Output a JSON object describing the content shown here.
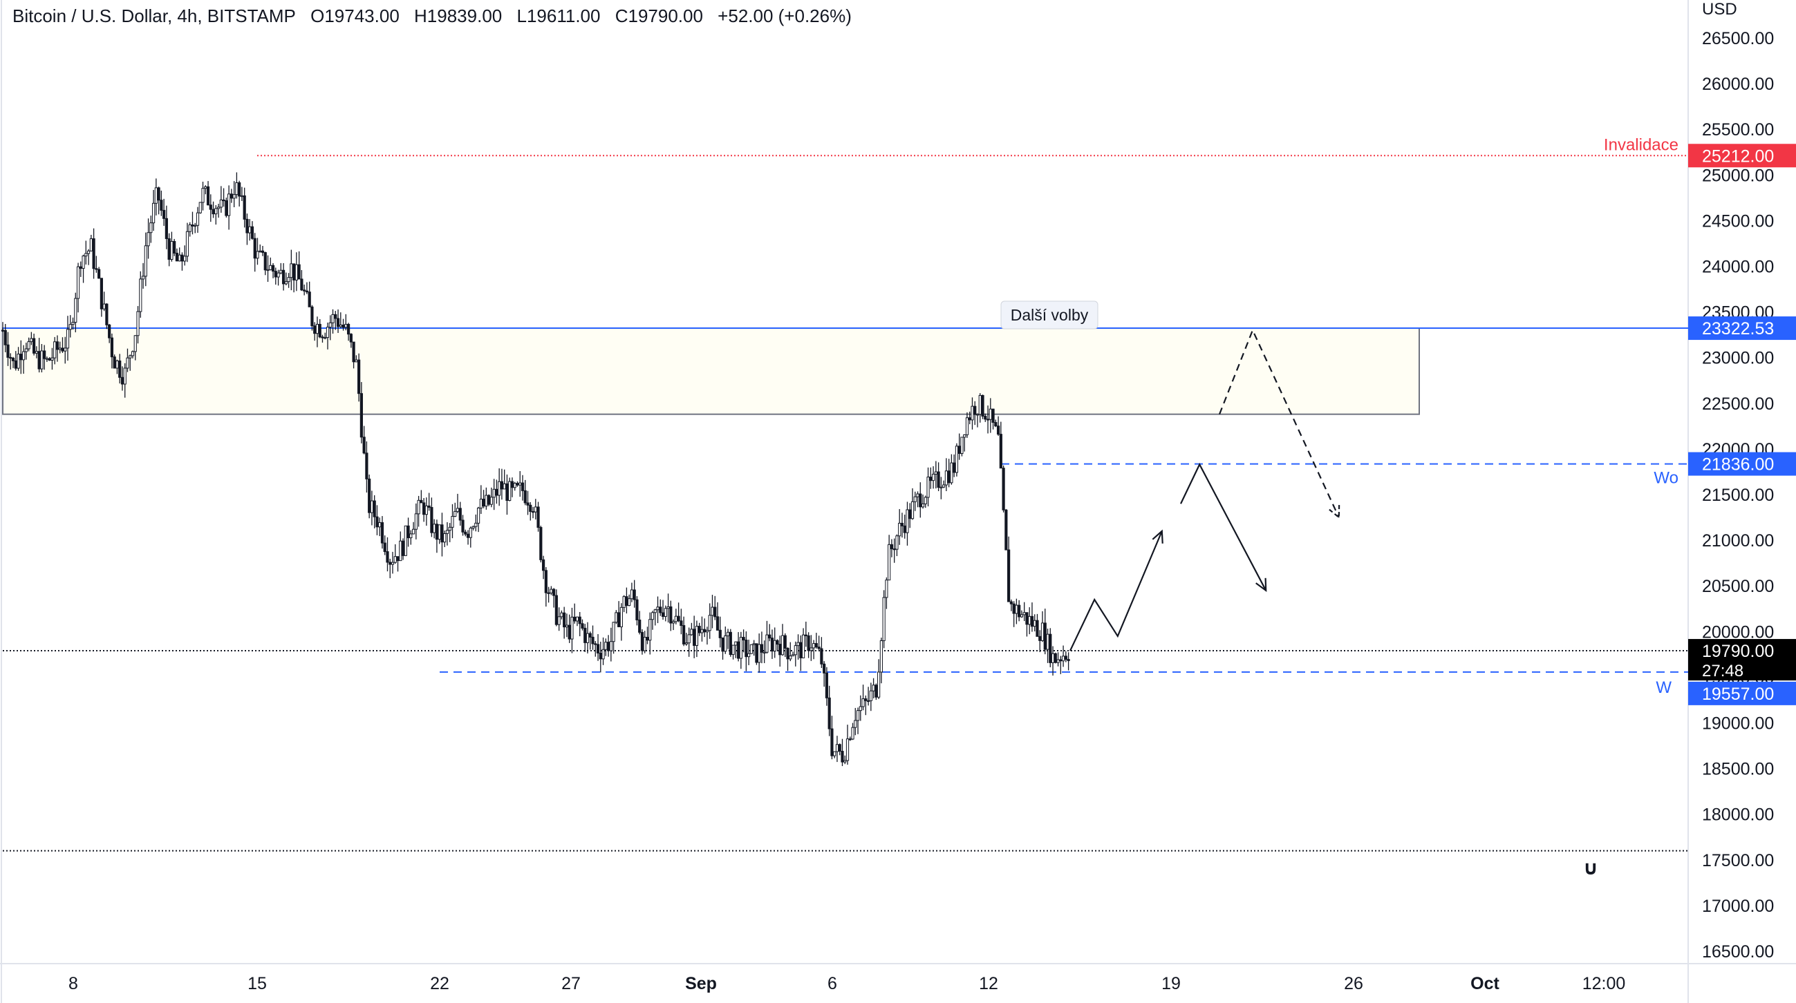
{
  "header": {
    "symbol": "Bitcoin / U.S. Dollar, 4h, BITSTAMP",
    "open": "O19743.00",
    "high": "H19839.00",
    "low": "L19611.00",
    "close": "C19790.00",
    "change": "+52.00 (+0.26%)"
  },
  "price_scale": {
    "currency": "USD",
    "ticks": [
      "26500.00",
      "26000.00",
      "25500.00",
      "25000.00",
      "24500.00",
      "24000.00",
      "23500.00",
      "23000.00",
      "22500.00",
      "22000.00",
      "21500.00",
      "21000.00",
      "20500.00",
      "20000.00",
      "19500.00",
      "19000.00",
      "18500.00",
      "18000.00",
      "17500.00",
      "17000.00",
      "16500.00"
    ],
    "tick_values": [
      26500,
      26000,
      25500,
      25000,
      24500,
      24000,
      23500,
      23000,
      22500,
      22000,
      21500,
      21000,
      20500,
      20000,
      19500,
      19000,
      18500,
      18000,
      17500,
      17000,
      16500
    ],
    "badges": [
      {
        "label": "25212.00",
        "value": 25212,
        "color": "#f23645",
        "text_color": "#ffffff"
      },
      {
        "label": "23322.53",
        "value": 23322.53,
        "color": "#2962ff",
        "text_color": "#ffffff"
      },
      {
        "label": "21836.00",
        "value": 21836,
        "color": "#2962ff",
        "text_color": "#ffffff"
      },
      {
        "label": "19790.00",
        "sub": "27:48",
        "value": 19790,
        "color": "#000000",
        "text_color": "#ffffff"
      },
      {
        "label": "19557.00",
        "value": 19557,
        "color": "#2962ff",
        "text_color": "#ffffff"
      }
    ]
  },
  "time_axis": {
    "labels": [
      "8",
      "15",
      "22",
      "27",
      "Sep",
      "6",
      "12",
      "19",
      "26",
      "Oct",
      "12:00"
    ],
    "bold": [
      "Sep",
      "Oct"
    ]
  },
  "annotations": {
    "invalidation_label": "Invalidace",
    "next_elections_label": "Další volby",
    "wo_label": "Wo",
    "w_label": "W"
  },
  "chart_data": {
    "type": "candlestick",
    "title": "Bitcoin / U.S. Dollar, 4h, BITSTAMP",
    "ylabel": "USD",
    "ylim": [
      16300,
      26800
    ],
    "last_price": 19790,
    "countdown": "27:48",
    "levels": [
      {
        "name": "Invalidace",
        "value": 25212,
        "style": "dotted",
        "color": "#f23645"
      },
      {
        "name": "Další volby",
        "value": 23322.53,
        "style": "solid",
        "color": "#2962ff"
      },
      {
        "name": "Wo",
        "value": 21836,
        "style": "dashed",
        "color": "#2962ff"
      },
      {
        "name": "W",
        "value": 19557,
        "style": "dashed",
        "color": "#2962ff"
      },
      {
        "name": "",
        "value": 19790,
        "style": "dotted",
        "color": "#131722"
      },
      {
        "name": "",
        "value": 17600,
        "style": "dotted",
        "color": "#131722"
      }
    ],
    "zone": {
      "top": 23322.53,
      "bottom": 22380
    },
    "price_path": [
      [
        0,
        23300
      ],
      [
        10,
        22900
      ],
      [
        20,
        23200
      ],
      [
        30,
        23000
      ],
      [
        40,
        22950
      ],
      [
        50,
        23100
      ],
      [
        60,
        23200
      ],
      [
        70,
        24100
      ],
      [
        80,
        24200
      ],
      [
        90,
        23600
      ],
      [
        100,
        23000
      ],
      [
        110,
        22800
      ],
      [
        120,
        23300
      ],
      [
        130,
        24300
      ],
      [
        140,
        24800
      ],
      [
        150,
        24200
      ],
      [
        160,
        24000
      ],
      [
        170,
        24400
      ],
      [
        180,
        24800
      ],
      [
        190,
        24700
      ],
      [
        200,
        24600
      ],
      [
        210,
        24900
      ],
      [
        220,
        24500
      ],
      [
        230,
        24100
      ],
      [
        240,
        24000
      ],
      [
        250,
        23900
      ],
      [
        260,
        24000
      ],
      [
        270,
        23800
      ],
      [
        280,
        23400
      ],
      [
        290,
        23300
      ],
      [
        300,
        23450
      ],
      [
        310,
        23300
      ],
      [
        320,
        22900
      ],
      [
        330,
        21400
      ],
      [
        340,
        21200
      ],
      [
        350,
        20800
      ],
      [
        360,
        20900
      ],
      [
        370,
        21200
      ],
      [
        380,
        21400
      ],
      [
        390,
        21100
      ],
      [
        400,
        21000
      ],
      [
        410,
        21300
      ],
      [
        420,
        21100
      ],
      [
        430,
        21350
      ],
      [
        440,
        21400
      ],
      [
        450,
        21600
      ],
      [
        460,
        21500
      ],
      [
        470,
        21550
      ],
      [
        480,
        21400
      ],
      [
        490,
        20600
      ],
      [
        500,
        20200
      ],
      [
        510,
        20000
      ],
      [
        520,
        20100
      ],
      [
        530,
        19900
      ],
      [
        540,
        19800
      ],
      [
        550,
        19900
      ],
      [
        560,
        20300
      ],
      [
        570,
        20400
      ],
      [
        580,
        19800
      ],
      [
        590,
        20200
      ],
      [
        600,
        20300
      ],
      [
        610,
        20100
      ],
      [
        620,
        19900
      ],
      [
        630,
        20000
      ],
      [
        640,
        20200
      ],
      [
        650,
        19900
      ],
      [
        660,
        19850
      ],
      [
        670,
        19800
      ],
      [
        680,
        19750
      ],
      [
        690,
        19850
      ],
      [
        700,
        19900
      ],
      [
        710,
        19800
      ],
      [
        720,
        19800
      ],
      [
        730,
        19900
      ],
      [
        740,
        19700
      ],
      [
        750,
        18700
      ],
      [
        760,
        18650
      ],
      [
        770,
        19100
      ],
      [
        780,
        19200
      ],
      [
        790,
        19400
      ],
      [
        800,
        20800
      ],
      [
        810,
        21100
      ],
      [
        820,
        21300
      ],
      [
        830,
        21500
      ],
      [
        840,
        21600
      ],
      [
        850,
        21700
      ],
      [
        860,
        21800
      ],
      [
        870,
        22300
      ],
      [
        880,
        22500
      ],
      [
        890,
        22400
      ],
      [
        900,
        22100
      ],
      [
        910,
        20300
      ],
      [
        920,
        20200
      ],
      [
        930,
        20100
      ],
      [
        940,
        20000
      ],
      [
        950,
        19700
      ],
      [
        960,
        19760
      ],
      [
        965,
        19790
      ]
    ],
    "projections": [
      {
        "style": "solid",
        "points": [
          [
            965,
            19790
          ],
          [
            987,
            20350
          ],
          [
            1008,
            19950
          ],
          [
            1048,
            21100
          ]
        ]
      },
      {
        "style": "solid",
        "points": [
          [
            1065,
            21400
          ],
          [
            1082,
            21830
          ],
          [
            1142,
            20450
          ]
        ]
      },
      {
        "style": "dashed",
        "points": [
          [
            1100,
            22380
          ],
          [
            1130,
            23300
          ],
          [
            1208,
            21250
          ]
        ]
      }
    ]
  }
}
